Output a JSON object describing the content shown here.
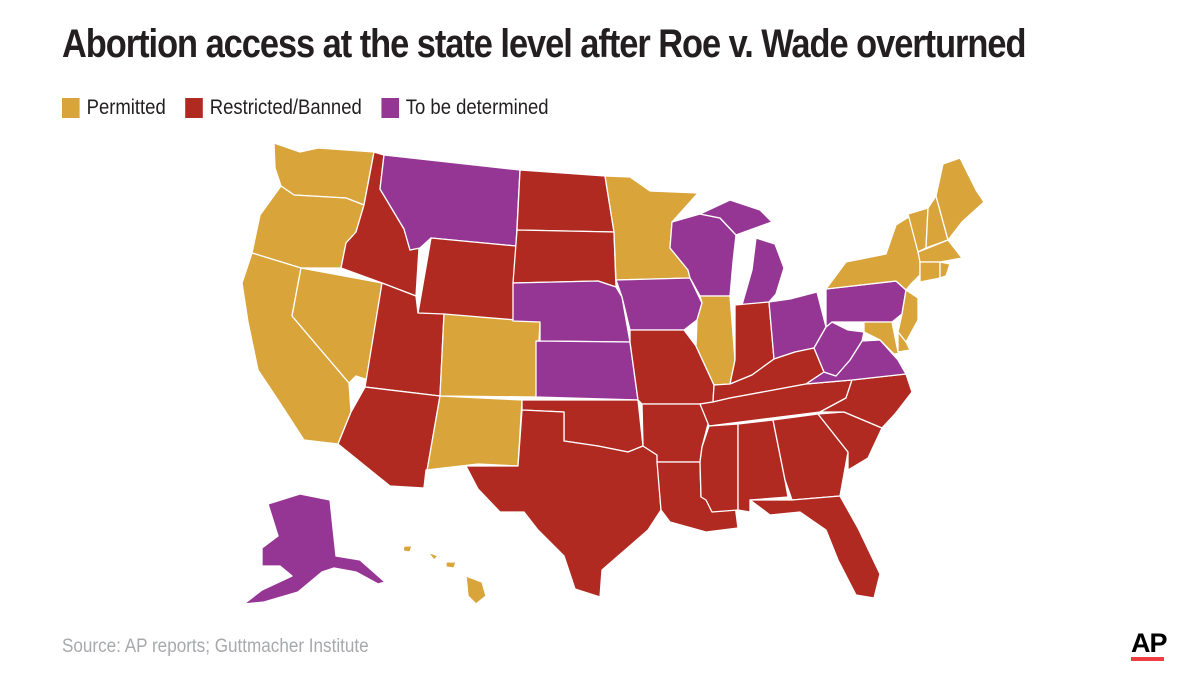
{
  "title": "Abortion access at the state level after Roe v. Wade overturned",
  "legend": [
    {
      "label": "Permitted",
      "color": "#d9a43a",
      "status": "permitted"
    },
    {
      "label": "Restricted/Banned",
      "color": "#b12a22",
      "status": "restricted"
    },
    {
      "label": "To be determined",
      "color": "#963694",
      "status": "tbd"
    }
  ],
  "states": {
    "WA": "permitted",
    "OR": "permitted",
    "CA": "permitted",
    "NV": "permitted",
    "ID": "restricted",
    "MT": "tbd",
    "WY": "restricted",
    "UT": "restricted",
    "AZ": "restricted",
    "CO": "permitted",
    "NM": "permitted",
    "ND": "restricted",
    "SD": "restricted",
    "NE": "tbd",
    "KS": "tbd",
    "OK": "restricted",
    "TX": "restricted",
    "MN": "permitted",
    "IA": "tbd",
    "MO": "restricted",
    "AR": "restricted",
    "LA": "restricted",
    "WI": "tbd",
    "IL": "permitted",
    "MI": "tbd",
    "IN": "restricted",
    "OH": "tbd",
    "KY": "restricted",
    "TN": "restricted",
    "MS": "restricted",
    "AL": "restricted",
    "GA": "restricted",
    "FL": "restricted",
    "SC": "restricted",
    "NC": "restricted",
    "VA": "tbd",
    "WV": "tbd",
    "PA": "tbd",
    "NY": "permitted",
    "VT": "permitted",
    "NH": "permitted",
    "ME": "permitted",
    "MA": "permitted",
    "CT": "permitted",
    "RI": "permitted",
    "NJ": "permitted",
    "DE": "permitted",
    "MD": "permitted",
    "AK": "tbd",
    "HI": "permitted"
  },
  "source": "Source: AP reports; Guttmacher Institute",
  "logo": "AP",
  "colors": {
    "logo_bar": "#ef3e42",
    "source_text": "#a7a9ac"
  }
}
